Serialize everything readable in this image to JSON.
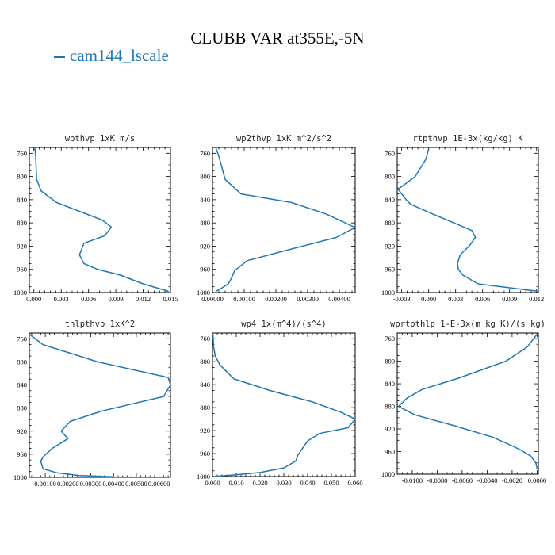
{
  "figure": {
    "title": "CLUBB VAR at355E,-5N",
    "legend": {
      "label": "cam144_lscale",
      "color": "#1f77b4"
    }
  },
  "chart_data": [
    {
      "type": "line",
      "title": "wpthvp   1xK m/s",
      "series_color": "#1f77b4",
      "xlim": [
        -0.0005,
        0.015
      ],
      "ylim": [
        1000,
        750
      ],
      "xticks": [
        0.0,
        0.003,
        0.006,
        0.009,
        0.012,
        0.015
      ],
      "xtick_labels": [
        "0.000",
        "0.003",
        "0.006",
        "0.009",
        "0.012",
        "0.015"
      ],
      "yticks": [
        760,
        800,
        840,
        880,
        920,
        960,
        1000
      ],
      "ytick_labels": [
        "760",
        "800",
        "840",
        "880",
        "920",
        "960",
        "1000"
      ],
      "x": [
        0.0001,
        0.0002,
        0.0003,
        0.0008,
        0.0025,
        0.0075,
        0.0085,
        0.0078,
        0.0055,
        0.005,
        0.0055,
        0.007,
        0.0095,
        0.012,
        0.0148
      ],
      "y": [
        750,
        765,
        805,
        825,
        845,
        875,
        887,
        902,
        915,
        935,
        950,
        960,
        970,
        985,
        998
      ]
    },
    {
      "type": "line",
      "title": "wp2thvp   1xK m^2/s^2",
      "series_color": "#1f77b4",
      "xlim": [
        0,
        0.0045
      ],
      "ylim": [
        1000,
        750
      ],
      "xticks": [
        0.0,
        0.001,
        0.002,
        0.003,
        0.004
      ],
      "xtick_labels": [
        "0.00000",
        "0.00100",
        "0.00200",
        "0.00300",
        "0.00400"
      ],
      "yticks": [
        760,
        800,
        840,
        880,
        920,
        960,
        1000
      ],
      "ytick_labels": [
        "760",
        "800",
        "840",
        "880",
        "920",
        "960",
        "1000"
      ],
      "x": [
        0.0001,
        0.0002,
        0.0004,
        0.0009,
        0.0025,
        0.0036,
        0.0045,
        0.0039,
        0.0027,
        0.0011,
        0.0007,
        0.0006,
        0.0005,
        0.0003,
        0.0001
      ],
      "y": [
        750,
        765,
        805,
        830,
        845,
        865,
        888,
        905,
        922,
        945,
        962,
        975,
        985,
        992,
        998
      ]
    },
    {
      "type": "line",
      "title": "rtpthvp   1E-3x(kg/kg) K",
      "series_color": "#1f77b4",
      "xlim": [
        -0.0035,
        0.0122
      ],
      "ylim": [
        1000,
        750
      ],
      "xticks": [
        -0.003,
        0.0,
        0.003,
        0.006,
        0.009,
        0.012
      ],
      "xtick_labels": [
        "-0.003",
        "0.000",
        "0.003",
        "0.006",
        "0.009",
        "0.012"
      ],
      "yticks": [
        760,
        800,
        840,
        880,
        920,
        960,
        1000
      ],
      "ytick_labels": [
        "760",
        "800",
        "840",
        "880",
        "920",
        "960",
        "1000"
      ],
      "x": [
        0.0,
        -0.0003,
        -0.0015,
        -0.0034,
        -0.0025,
        -0.002,
        0.0005,
        0.0048,
        0.0052,
        0.0045,
        0.0035,
        0.0032,
        0.0033,
        0.0038,
        0.0055,
        0.0122
      ],
      "y": [
        752,
        770,
        800,
        822,
        840,
        848,
        865,
        893,
        905,
        920,
        935,
        950,
        960,
        970,
        985,
        998
      ]
    },
    {
      "type": "line",
      "title": "thlpthvp   1xK^2",
      "series_color": "#1f77b4",
      "xlim": [
        0.0003,
        0.0065
      ],
      "ylim": [
        1000,
        750
      ],
      "xticks": [
        0.001,
        0.002,
        0.003,
        0.004,
        0.005,
        0.006
      ],
      "xtick_labels": [
        "0.00100",
        "0.00200",
        "0.00300",
        "0.00400",
        "0.00500",
        "0.00600"
      ],
      "yticks": [
        760,
        800,
        840,
        880,
        920,
        960,
        1000
      ],
      "ytick_labels": [
        "760",
        "800",
        "840",
        "880",
        "920",
        "960",
        "1000"
      ],
      "x": [
        0.0003,
        0.0009,
        0.0033,
        0.0064,
        0.0065,
        0.0062,
        0.0035,
        0.0021,
        0.0017,
        0.002,
        0.0013,
        0.0009,
        0.0008,
        0.0009,
        0.0015,
        0.0025,
        0.004
      ],
      "y": [
        752,
        770,
        800,
        827,
        840,
        860,
        885,
        903,
        920,
        933,
        950,
        965,
        972,
        985,
        992,
        997,
        999
      ]
    },
    {
      "type": "line",
      "title": "wp4   1x(m^4)/(s^4)",
      "series_color": "#1f77b4",
      "xlim": [
        0,
        0.06
      ],
      "ylim": [
        1000,
        750
      ],
      "xticks": [
        0.0,
        0.01,
        0.02,
        0.03,
        0.04,
        0.05,
        0.06
      ],
      "xtick_labels": [
        "0.000",
        "0.010",
        "0.020",
        "0.030",
        "0.040",
        "0.050",
        "0.060"
      ],
      "yticks": [
        760,
        800,
        840,
        880,
        920,
        960,
        1000
      ],
      "ytick_labels": [
        "760",
        "800",
        "840",
        "880",
        "920",
        "960",
        "1000"
      ],
      "x": [
        0.0002,
        0.0005,
        0.0012,
        0.003,
        0.009,
        0.024,
        0.042,
        0.054,
        0.06,
        0.057,
        0.045,
        0.04,
        0.038,
        0.036,
        0.035,
        0.03,
        0.02,
        0.01,
        0.0003
      ],
      "y": [
        752,
        775,
        790,
        805,
        830,
        850,
        870,
        888,
        900,
        915,
        925,
        938,
        950,
        962,
        973,
        985,
        993,
        997,
        1000
      ]
    },
    {
      "type": "line",
      "title": "wprtpthlp   1-E-3x(m kg K)/(s kg)",
      "series_color": "#1f77b4",
      "xlim": [
        -0.0112,
        0.0001
      ],
      "ylim": [
        1000,
        750
      ],
      "xticks": [
        -0.01,
        -0.008,
        -0.006,
        -0.004,
        -0.002,
        0.0
      ],
      "xtick_labels": [
        "-0.0100",
        "-0.0080",
        "-0.0060",
        "-0.0040",
        "-0.0020",
        "0.0000"
      ],
      "yticks": [
        760,
        800,
        840,
        880,
        920,
        960,
        1000
      ],
      "ytick_labels": [
        "760",
        "800",
        "840",
        "880",
        "920",
        "960",
        "1000"
      ],
      "x": [
        0.0,
        -0.0008,
        -0.0025,
        -0.0063,
        -0.0092,
        -0.0104,
        -0.0111,
        -0.0098,
        -0.0065,
        -0.0035,
        -0.0015,
        -0.0005,
        -0.0001,
        0.0
      ],
      "y": [
        752,
        775,
        800,
        830,
        850,
        865,
        880,
        895,
        915,
        935,
        955,
        968,
        980,
        990
      ]
    }
  ]
}
